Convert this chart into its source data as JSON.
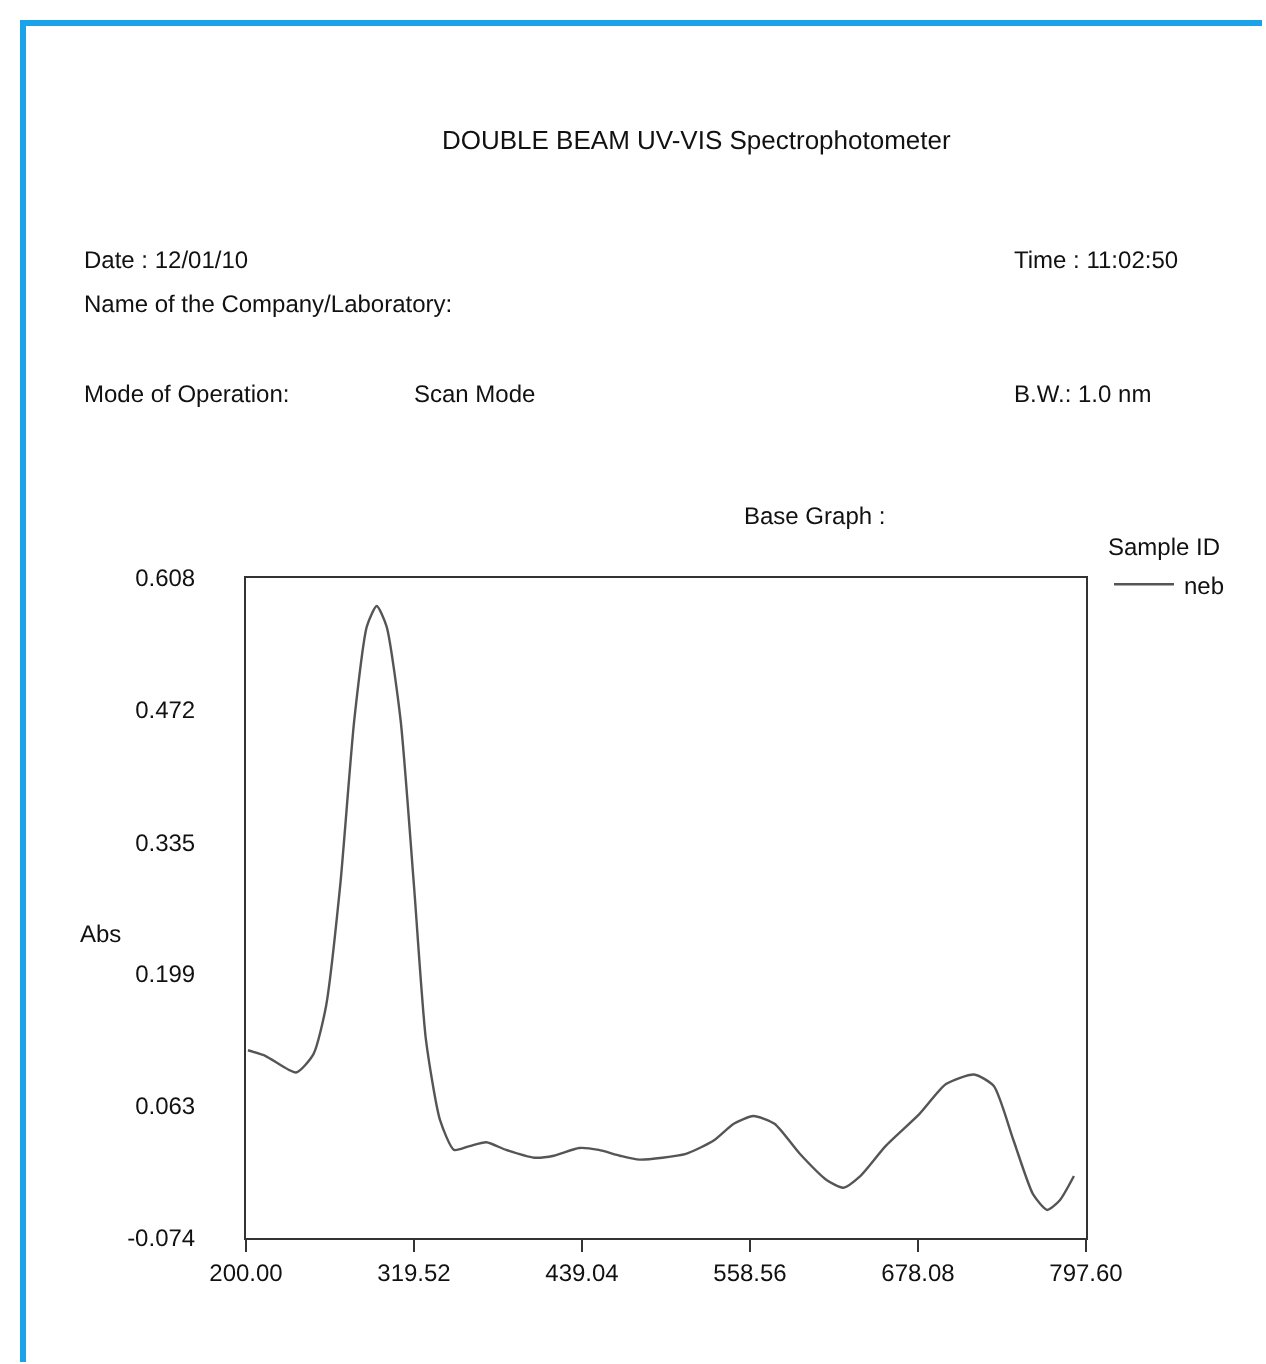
{
  "chart_data": {
    "type": "line",
    "title": "DOUBLE BEAM UV-VIS Spectrophotometer",
    "ylabel": "Abs",
    "legend_title": "Sample ID",
    "annotations": [
      "Date : 12/01/10",
      "Name of the Company/Laboratory:",
      "Mode of Operation:",
      "Scan Mode",
      "Time : 11:02:50",
      "B.W.: 1.0 nm",
      "Base Graph :"
    ],
    "x": [
      201.4,
      214,
      235.6,
      248,
      257,
      267,
      277,
      286,
      293,
      300,
      310,
      319.5,
      328,
      338,
      348,
      359,
      371,
      385,
      405,
      419,
      437,
      451,
      466,
      480,
      513,
      533,
      547,
      561,
      576,
      594,
      613,
      625,
      637,
      655,
      679,
      698,
      718,
      732,
      746,
      760,
      770,
      779,
      789
    ],
    "series": [
      {
        "name": "neb",
        "color": "#555555",
        "values": [
          0.12,
          0.114,
          0.097,
          0.116,
          0.166,
          0.29,
          0.461,
          0.558,
          0.579,
          0.558,
          0.461,
          0.29,
          0.131,
          0.048,
          0.017,
          0.021,
          0.025,
          0.017,
          0.009,
          0.011,
          0.019,
          0.017,
          0.011,
          0.007,
          0.013,
          0.027,
          0.044,
          0.052,
          0.044,
          0.013,
          -0.014,
          -0.022,
          -0.01,
          0.021,
          0.054,
          0.085,
          0.095,
          0.083,
          0.027,
          -0.029,
          -0.045,
          -0.035,
          -0.01
        ]
      }
    ],
    "xlim": [
      200,
      797.6
    ],
    "xticks": [
      {
        "value": 200,
        "label": "200.00"
      },
      {
        "value": 319.52,
        "label": "319.52"
      },
      {
        "value": 439.04,
        "label": "439.04"
      },
      {
        "value": 558.56,
        "label": "558.56"
      },
      {
        "value": 678.08,
        "label": "678.08"
      },
      {
        "value": 797.6,
        "label": "797.60"
      }
    ],
    "ylim": [
      -0.074,
      0.608
    ],
    "yticks": [
      -0.074,
      0.063,
      0.199,
      0.335,
      0.472,
      0.608
    ],
    "grid": false,
    "legend": "top right",
    "line_style": "solid",
    "marker": "none"
  }
}
